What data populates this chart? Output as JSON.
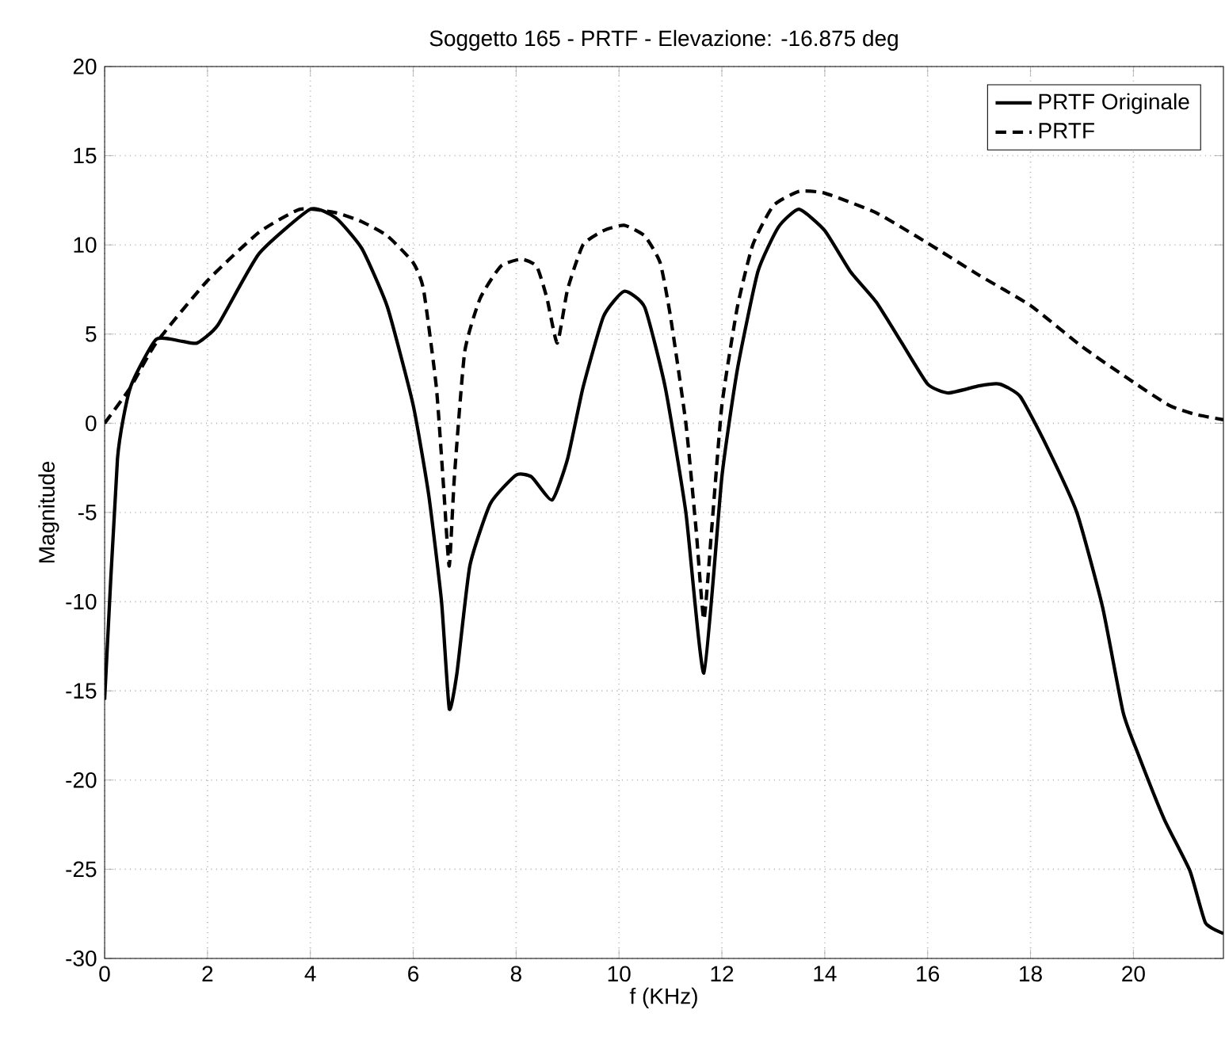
{
  "chart_data": {
    "type": "line",
    "title": "Soggetto 165 - PRTF - Elevazione: -16.875 deg",
    "xlabel": "f (KHz)",
    "ylabel": "Magnitude",
    "xlim": [
      0,
      21.75
    ],
    "ylim": [
      -30,
      20
    ],
    "xticks": [
      0,
      2,
      4,
      6,
      8,
      10,
      12,
      14,
      16,
      18,
      20
    ],
    "yticks": [
      -30,
      -25,
      -20,
      -15,
      -10,
      -5,
      0,
      5,
      10,
      15,
      20
    ],
    "grid": true,
    "legend": "top right",
    "marker": "none",
    "series": [
      {
        "name": "PRTF Originale",
        "color": "#000000",
        "line_style": "solid",
        "x": [
          0,
          0.25,
          0.5,
          1,
          1.5,
          1.8,
          2.2,
          3,
          4,
          4.5,
          5,
          5.5,
          6,
          6.3,
          6.55,
          6.7,
          6.85,
          7.1,
          7.5,
          8,
          8.3,
          8.7,
          9,
          9.3,
          9.7,
          10.1,
          10.5,
          10.9,
          11.3,
          11.65,
          12,
          12.3,
          12.7,
          13.1,
          13.5,
          14,
          14.5,
          15,
          15.5,
          16,
          16.4,
          17,
          17.4,
          17.8,
          18.3,
          18.9,
          19.4,
          19.8,
          20.1,
          20.6,
          21.1,
          21.4,
          21.75
        ],
        "values": [
          -15.5,
          -2,
          2,
          4.7,
          4.6,
          4.5,
          5.5,
          9.5,
          12,
          11.5,
          9.8,
          6.5,
          1,
          -4,
          -10,
          -16,
          -14,
          -8,
          -4.5,
          -2.9,
          -3,
          -4.3,
          -2,
          2,
          6,
          7.4,
          6.5,
          2,
          -5,
          -14,
          -3,
          3,
          8.5,
          11,
          12,
          10.8,
          8.5,
          6.8,
          4.5,
          2.2,
          1.7,
          2.1,
          2.2,
          1.5,
          -1.2,
          -5,
          -10.3,
          -16.2,
          -18.6,
          -22.2,
          -25.1,
          -28,
          -28.6
        ]
      },
      {
        "name": "PRTF",
        "color": "#000000",
        "line_style": "dashed",
        "x": [
          0,
          0.5,
          1,
          2,
          3,
          3.8,
          4.5,
          5,
          5.5,
          6,
          6.2,
          6.45,
          6.6,
          6.7,
          6.8,
          7,
          7.3,
          7.7,
          8.1,
          8.4,
          8.6,
          8.8,
          9,
          9.3,
          9.7,
          10.1,
          10.5,
          10.8,
          11,
          11.3,
          11.5,
          11.65,
          11.8,
          12,
          12.3,
          12.6,
          13,
          13.5,
          14,
          15,
          16,
          17,
          18,
          19,
          20,
          20.7,
          21.2,
          21.75
        ],
        "values": [
          0,
          2,
          4.5,
          8,
          10.7,
          12,
          11.8,
          11.3,
          10.5,
          9,
          7.5,
          2,
          -4,
          -8,
          -3,
          4,
          7,
          8.8,
          9.2,
          8.8,
          7,
          4.5,
          7.5,
          10,
          10.8,
          11.1,
          10.5,
          9,
          6,
          0,
          -6,
          -11,
          -6,
          1,
          6.5,
          10,
          12.2,
          13,
          12.9,
          11.8,
          10.1,
          8.3,
          6.6,
          4.3,
          2.3,
          1,
          0.5,
          0.2
        ]
      }
    ]
  }
}
